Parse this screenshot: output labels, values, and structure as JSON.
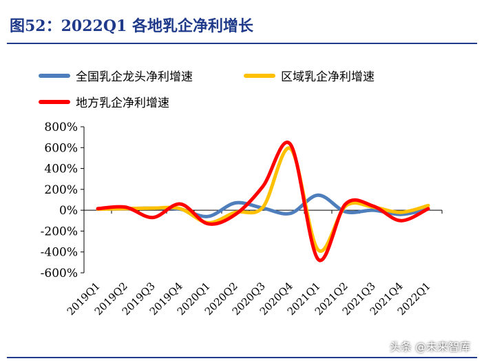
{
  "header": {
    "title": "图52：2022Q1 各地乳企净利增长"
  },
  "watermark": "头条 @未来智库",
  "colors": {
    "title": "#1f3a8a",
    "national": "#4f7ebc",
    "regional": "#ffc000",
    "local": "#ff0000"
  },
  "chart_data": {
    "type": "line",
    "title": "2022Q1 各地乳企净利增长",
    "xlabel": "",
    "ylabel": "",
    "categories": [
      "2019Q1",
      "2019Q2",
      "2019Q3",
      "2019Q4",
      "2020Q1",
      "2020Q2",
      "2020Q3",
      "2020Q4",
      "2021Q1",
      "2021Q2",
      "2021Q3",
      "2021Q4",
      "2022Q1"
    ],
    "ylim": [
      -600,
      800
    ],
    "yticks": [
      800,
      600,
      400,
      200,
      0,
      -200,
      -400,
      -600
    ],
    "ytick_labels": [
      "800%",
      "600%",
      "400%",
      "200%",
      "0%",
      "-200%",
      "-400%",
      "-600%"
    ],
    "smooth": true,
    "legend_position": "top",
    "series": [
      {
        "name": "全国乳企龙头净利增速",
        "color": "#4f7ebc",
        "values": [
          10,
          15,
          20,
          10,
          -60,
          70,
          20,
          -30,
          145,
          -15,
          0,
          -40,
          10
        ]
      },
      {
        "name": "区域乳企净利增速",
        "color": "#ffc000",
        "values": [
          10,
          15,
          20,
          15,
          -120,
          -20,
          30,
          590,
          -380,
          40,
          30,
          -20,
          45
        ]
      },
      {
        "name": "地方乳企净利增速",
        "color": "#ff0000",
        "values": [
          15,
          30,
          -70,
          60,
          -130,
          -40,
          230,
          630,
          -470,
          60,
          40,
          -100,
          15
        ]
      }
    ]
  }
}
